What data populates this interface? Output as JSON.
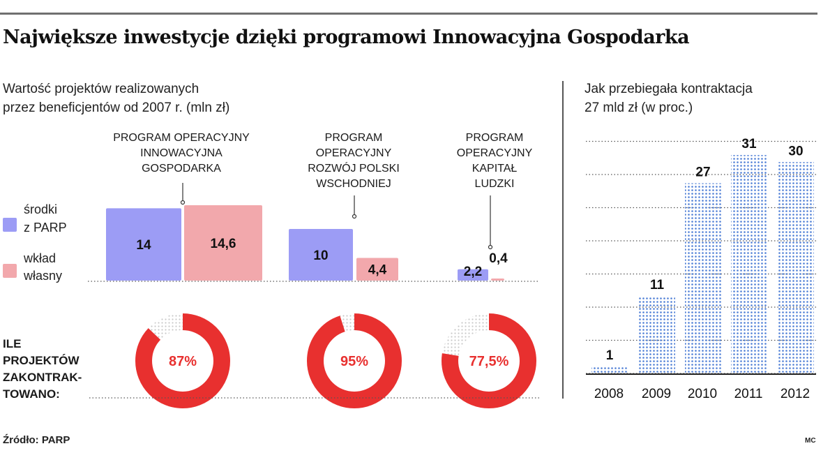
{
  "header": {
    "title": "Największe inwestycje dzięki programowi Innowacyjna Gospodarka"
  },
  "left_panel": {
    "subtitle_lines": [
      "Wartość projektów realizowanych",
      "przez beneficjentów od 2007 r. (mln zł)"
    ],
    "side_label_lines": [
      "ILE",
      "PROJEKTÓW",
      "ZAKONTRAK-",
      "TOWANO:"
    ]
  },
  "right_panel": {
    "subtitle_lines": [
      "Jak przebiegała kontraktacja",
      "27 mld zł (w proc.)"
    ]
  },
  "footer": {
    "source": "Źródło: PARP",
    "credit": "MC"
  },
  "colors": {
    "parp": "#9c9cf5",
    "own": "#f2a8ac",
    "donut": "#e8302f",
    "donut_dots": "#c9c9c9",
    "dots_blue": "#4f7fd6",
    "text": "#1a1a1a"
  },
  "chart_data": [
    {
      "type": "bar",
      "title": "Wartość projektów realizowanych przez beneficjentów od 2007 r. (mln zł)",
      "categories": [
        [
          "PROGRAM OPERACYJNY",
          "INNOWACYJNA",
          "GOSPODARKA"
        ],
        [
          "PROGRAM",
          "OPERACYJNY",
          "ROZWÓJ POLSKI",
          "WSCHODNIEJ"
        ],
        [
          "PROGRAM",
          "OPERACYJNY",
          "KAPITAŁ",
          "LUDZKI"
        ]
      ],
      "series": [
        {
          "name": [
            "środki",
            "z PARP"
          ],
          "values": [
            14,
            10,
            2.2
          ],
          "labels": [
            "14",
            "10",
            "2,2"
          ]
        },
        {
          "name": [
            "wkład",
            "własny"
          ],
          "values": [
            14.6,
            4.4,
            0.4
          ],
          "labels": [
            "14,6",
            "4,4",
            "0,4"
          ]
        }
      ],
      "ylim": [
        0,
        15
      ]
    },
    {
      "type": "pie",
      "title": "ILE PROJEKTÓW ZAKONTRAKTOWANO:",
      "values": [
        87,
        95,
        77.5
      ],
      "labels": [
        "87%",
        "95%",
        "77,5%"
      ]
    },
    {
      "type": "bar",
      "title": "Jak przebiegała kontraktacja 27 mld zł (w proc.)",
      "categories": [
        "2008",
        "2009",
        "2010",
        "2011",
        "2012"
      ],
      "values": [
        1,
        11,
        27,
        31,
        30
      ],
      "ylim": [
        0,
        33
      ],
      "grid": true
    }
  ]
}
